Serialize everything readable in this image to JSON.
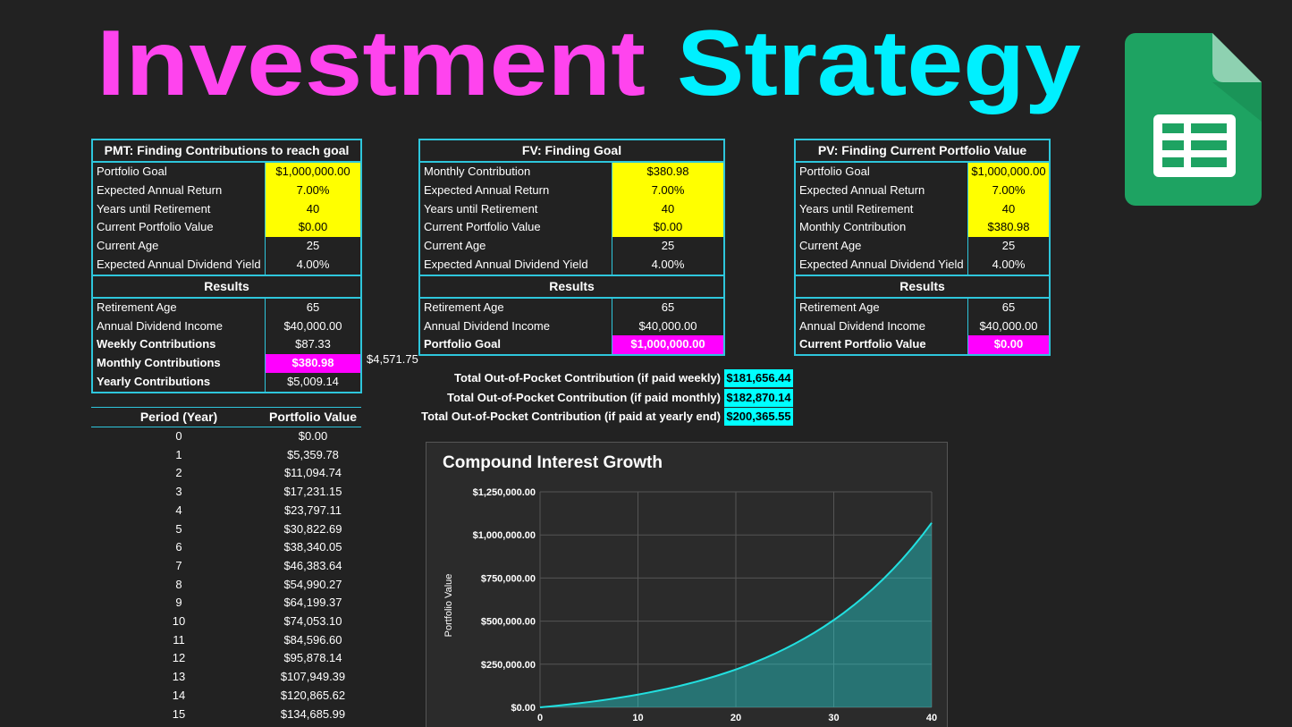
{
  "title": [
    "Investment",
    "Strategy"
  ],
  "tables": [
    {
      "title": "PMT: Finding Contributions to reach goal",
      "inputs": [
        {
          "label": "Portfolio Goal",
          "value": "$1,000,000.00",
          "fill": "#ffff00"
        },
        {
          "label": "Expected Annual Return",
          "value": "7.00%",
          "fill": "#ffff00"
        },
        {
          "label": "Years until Retirement",
          "value": "40",
          "fill": "#ffff00"
        },
        {
          "label": "Current Portfolio Value",
          "value": "$0.00",
          "fill": "#ffff00"
        },
        {
          "label": "Current Age",
          "value": "25"
        },
        {
          "label": "Expected Annual Dividend Yield",
          "value": "4.00%"
        }
      ],
      "results_header": "Results",
      "results": [
        {
          "label": "Retirement Age",
          "value": "65"
        },
        {
          "label": "Annual Dividend Income",
          "value": "$40,000.00"
        },
        {
          "label": "Weekly Contributions",
          "value": "$87.33",
          "bold": true
        },
        {
          "label": "Monthly Contributions",
          "value": "$380.98",
          "bold": true,
          "fill": "#ff00ff"
        },
        {
          "label": "Yearly Contributions",
          "value": "$5,009.14",
          "bold": true
        }
      ],
      "side_value": "$4,571.75"
    },
    {
      "title": "FV: Finding Goal",
      "inputs": [
        {
          "label": "Monthly Contribution",
          "value": "$380.98",
          "fill": "#ffff00"
        },
        {
          "label": "Expected Annual Return",
          "value": "7.00%",
          "fill": "#ffff00"
        },
        {
          "label": "Years until Retirement",
          "value": "40",
          "fill": "#ffff00"
        },
        {
          "label": "Current Portfolio Value",
          "value": "$0.00",
          "fill": "#ffff00"
        },
        {
          "label": "Current Age",
          "value": "25"
        },
        {
          "label": "Expected Annual Dividend Yield",
          "value": "4.00%"
        }
      ],
      "results_header": "Results",
      "results": [
        {
          "label": "Retirement Age",
          "value": "65"
        },
        {
          "label": "Annual Dividend Income",
          "value": "$40,000.00"
        },
        {
          "label": "Portfolio Goal",
          "value": "$1,000,000.00",
          "bold": true,
          "fill": "#ff00ff"
        }
      ]
    },
    {
      "title": "PV: Finding Current Portfolio Value",
      "inputs": [
        {
          "label": "Portfolio Goal",
          "value": "$1,000,000.00",
          "fill": "#ffff00"
        },
        {
          "label": "Expected Annual Return",
          "value": "7.00%",
          "fill": "#ffff00"
        },
        {
          "label": "Years until Retirement",
          "value": "40",
          "fill": "#ffff00"
        },
        {
          "label": "Monthly Contribution",
          "value": "$380.98",
          "fill": "#ffff00"
        },
        {
          "label": "Current Age",
          "value": "25"
        },
        {
          "label": "Expected Annual Dividend Yield",
          "value": "4.00%"
        }
      ],
      "results_header": "Results",
      "results": [
        {
          "label": "Retirement Age",
          "value": "65"
        },
        {
          "label": "Annual Dividend Income",
          "value": "$40,000.00"
        },
        {
          "label": "Current Portfolio Value",
          "value": "$0.00",
          "bold": true,
          "fill": "#ff00ff"
        }
      ]
    }
  ],
  "totals": [
    {
      "label": "Total Out-of-Pocket Contribution (if paid weekly)",
      "value": "$181,656.44"
    },
    {
      "label": "Total Out-of-Pocket Contribution (if paid monthly)",
      "value": "$182,870.14"
    },
    {
      "label": "Total Out-of-Pocket Contribution (if paid at yearly end)",
      "value": "$200,365.55"
    }
  ],
  "period_table": {
    "header": [
      "Period (Year)",
      "Portfolio Value"
    ],
    "rows": [
      [
        0,
        "$0.00"
      ],
      [
        1,
        "$5,359.78"
      ],
      [
        2,
        "$11,094.74"
      ],
      [
        3,
        "$17,231.15"
      ],
      [
        4,
        "$23,797.11"
      ],
      [
        5,
        "$30,822.69"
      ],
      [
        6,
        "$38,340.05"
      ],
      [
        7,
        "$46,383.64"
      ],
      [
        8,
        "$54,990.27"
      ],
      [
        9,
        "$64,199.37"
      ],
      [
        10,
        "$74,053.10"
      ],
      [
        11,
        "$84,596.60"
      ],
      [
        12,
        "$95,878.14"
      ],
      [
        13,
        "$107,949.39"
      ],
      [
        14,
        "$120,865.62"
      ],
      [
        15,
        "$134,685.99"
      ]
    ]
  },
  "chart_data": {
    "type": "area",
    "title": "Compound Interest Growth",
    "y_label": "Portfolio Value",
    "color": "#22e0e0",
    "x": [
      0,
      1,
      2,
      3,
      4,
      5,
      6,
      7,
      8,
      9,
      10,
      11,
      12,
      13,
      14,
      15,
      16,
      17,
      18,
      19,
      20,
      21,
      22,
      23,
      24,
      25,
      26,
      27,
      28,
      29,
      30,
      31,
      32,
      33,
      34,
      35,
      36,
      37,
      38,
      39,
      40
    ],
    "values": [
      0,
      5360,
      11095,
      17231,
      23797,
      30823,
      38340,
      46384,
      54990,
      64199,
      74053,
      84597,
      95878,
      107949,
      120866,
      134686,
      149474,
      165297,
      182227,
      200343,
      219727,
      240467,
      262660,
      286406,
      311814,
      339001,
      368091,
      399217,
      432522,
      468158,
      506289,
      547089,
      590745,
      637457,
      687439,
      740919,
      798143,
      859373,
      924889,
      994991,
      1070000
    ],
    "xlim": [
      0,
      40
    ],
    "xticks": [
      0,
      10,
      20,
      30,
      40
    ],
    "ylim": [
      0,
      1250000
    ],
    "yticks": [
      {
        "value": 0,
        "label": "$0.00"
      },
      {
        "value": 250000,
        "label": "$250,000.00"
      },
      {
        "value": 500000,
        "label": "$500,000.00"
      },
      {
        "value": 750000,
        "label": "$750,000.00"
      },
      {
        "value": 1000000,
        "label": "$1,000,000.00"
      },
      {
        "value": 1250000,
        "label": "$1,250,000.00"
      }
    ],
    "grid": true
  }
}
